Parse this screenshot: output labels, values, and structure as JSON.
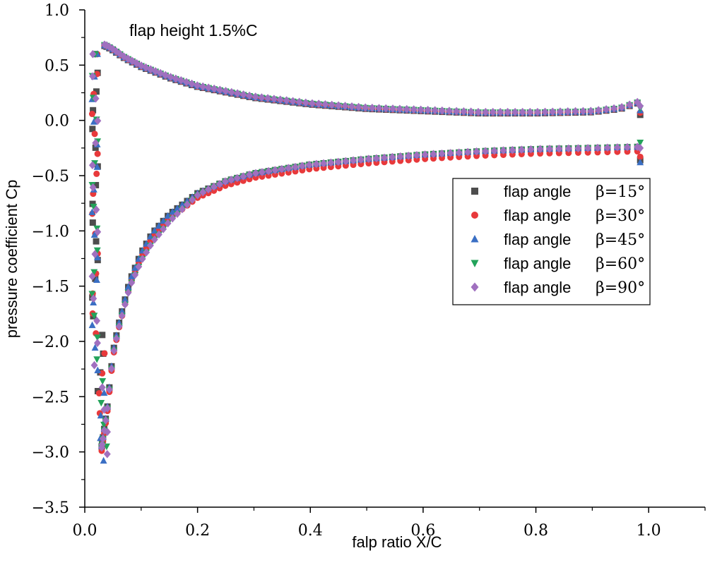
{
  "chart_data": {
    "type": "scatter",
    "title": "",
    "annotation": "flap height 1.5%C",
    "xlabel": "falp ratio X/C",
    "ylabel": "pressure coefficient Cp",
    "xlim": [
      0.0,
      1.1
    ],
    "ylim": [
      -3.5,
      1.0
    ],
    "xticks": [
      "0.0",
      "0.2",
      "0.4",
      "0.6",
      "0.8",
      "1.0"
    ],
    "yticks": [
      "1.0",
      "0.5",
      "0.0",
      "-0.5",
      "-1.0",
      "-1.5",
      "-2.0",
      "-2.5",
      "-3.0",
      "-3.5"
    ],
    "grid": false,
    "legend_position": "right",
    "series": [
      {
        "name": "flap angle",
        "beta": "β=15°",
        "marker": "square",
        "color": "#4d4d4d",
        "tip_min": -2.45,
        "rear_lower": -0.36
      },
      {
        "name": "flap angle",
        "beta": "β=30°",
        "marker": "circle",
        "color": "#e8393b",
        "tip_min": -2.65,
        "rear_lower": -0.33
      },
      {
        "name": "flap angle",
        "beta": "β=45°",
        "marker": "triangle-up",
        "color": "#3a6fc4",
        "tip_min": -3.08,
        "rear_lower": -0.38
      },
      {
        "name": "flap angle",
        "beta": "β=60°",
        "marker": "triangle-down",
        "color": "#23a35a",
        "tip_min": -2.95,
        "rear_lower": -0.2
      },
      {
        "name": "flap angle",
        "beta": "β=90°",
        "marker": "diamond",
        "color": "#a070bf",
        "tip_min": -3.02,
        "rear_lower": -0.25
      }
    ],
    "upper_surface": {
      "x": [
        0.02,
        0.025,
        0.03,
        0.035,
        0.04,
        0.05,
        0.07,
        0.1,
        0.15,
        0.2,
        0.3,
        0.4,
        0.5,
        0.6,
        0.7,
        0.8,
        0.9,
        0.95,
        0.98
      ],
      "y": [
        0.1,
        0.45,
        0.62,
        0.68,
        0.67,
        0.64,
        0.57,
        0.49,
        0.39,
        0.31,
        0.21,
        0.15,
        0.11,
        0.09,
        0.07,
        0.07,
        0.08,
        0.11,
        0.16
      ]
    },
    "lower_surface": {
      "x": [
        0.02,
        0.03,
        0.04,
        0.05,
        0.06,
        0.08,
        0.1,
        0.12,
        0.15,
        0.2,
        0.25,
        0.3,
        0.4,
        0.5,
        0.6,
        0.7,
        0.8,
        0.9,
        0.98
      ],
      "y": [
        -2.5,
        -2.95,
        -2.6,
        -2.1,
        -1.85,
        -1.45,
        -1.2,
        -1.02,
        -0.85,
        -0.66,
        -0.55,
        -0.48,
        -0.4,
        -0.35,
        -0.31,
        -0.28,
        -0.26,
        -0.25,
        -0.24
      ]
    }
  }
}
